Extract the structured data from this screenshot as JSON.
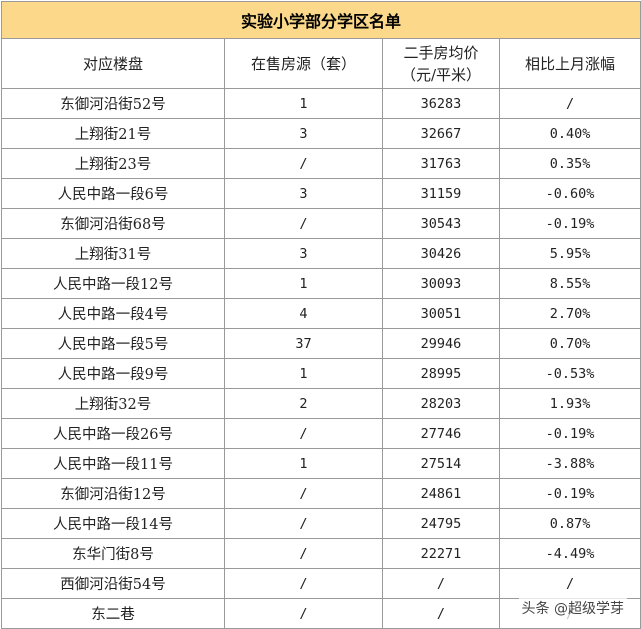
{
  "title": "实验小学部分学区名单",
  "headers": {
    "c1": "对应楼盘",
    "c2": "在售房源（套）",
    "c3_line1": "二手房均价",
    "c3_line2": "（元/平米）",
    "c4": "相比上月涨幅"
  },
  "rows": [
    {
      "estate": "东御河沿街52号",
      "listings": "1",
      "price": "36283",
      "change": "/"
    },
    {
      "estate": "上翔街21号",
      "listings": "3",
      "price": "32667",
      "change": "0.40%"
    },
    {
      "estate": "上翔街23号",
      "listings": "/",
      "price": "31763",
      "change": "0.35%"
    },
    {
      "estate": "人民中路一段6号",
      "listings": "3",
      "price": "31159",
      "change": "-0.60%"
    },
    {
      "estate": "东御河沿街68号",
      "listings": "/",
      "price": "30543",
      "change": "-0.19%"
    },
    {
      "estate": "上翔街31号",
      "listings": "3",
      "price": "30426",
      "change": "5.95%"
    },
    {
      "estate": "人民中路一段12号",
      "listings": "1",
      "price": "30093",
      "change": "8.55%"
    },
    {
      "estate": "人民中路一段4号",
      "listings": "4",
      "price": "30051",
      "change": "2.70%"
    },
    {
      "estate": "人民中路一段5号",
      "listings": "37",
      "price": "29946",
      "change": "0.70%"
    },
    {
      "estate": "人民中路一段9号",
      "listings": "1",
      "price": "28995",
      "change": "-0.53%"
    },
    {
      "estate": "上翔街32号",
      "listings": "2",
      "price": "28203",
      "change": "1.93%"
    },
    {
      "estate": "人民中路一段26号",
      "listings": "/",
      "price": "27746",
      "change": "-0.19%"
    },
    {
      "estate": "人民中路一段11号",
      "listings": "1",
      "price": "27514",
      "change": "-3.88%"
    },
    {
      "estate": "东御河沿街12号",
      "listings": "/",
      "price": "24861",
      "change": "-0.19%"
    },
    {
      "estate": "人民中路一段14号",
      "listings": "/",
      "price": "24795",
      "change": "0.87%"
    },
    {
      "estate": "东华门街8号",
      "listings": "/",
      "price": "22271",
      "change": "-4.49%"
    },
    {
      "estate": "西御河沿街54号",
      "listings": "/",
      "price": "/",
      "change": "/"
    },
    {
      "estate": "东二巷",
      "listings": "/",
      "price": "/",
      "change": "/"
    }
  ],
  "watermark": "头条 @超级学芽"
}
